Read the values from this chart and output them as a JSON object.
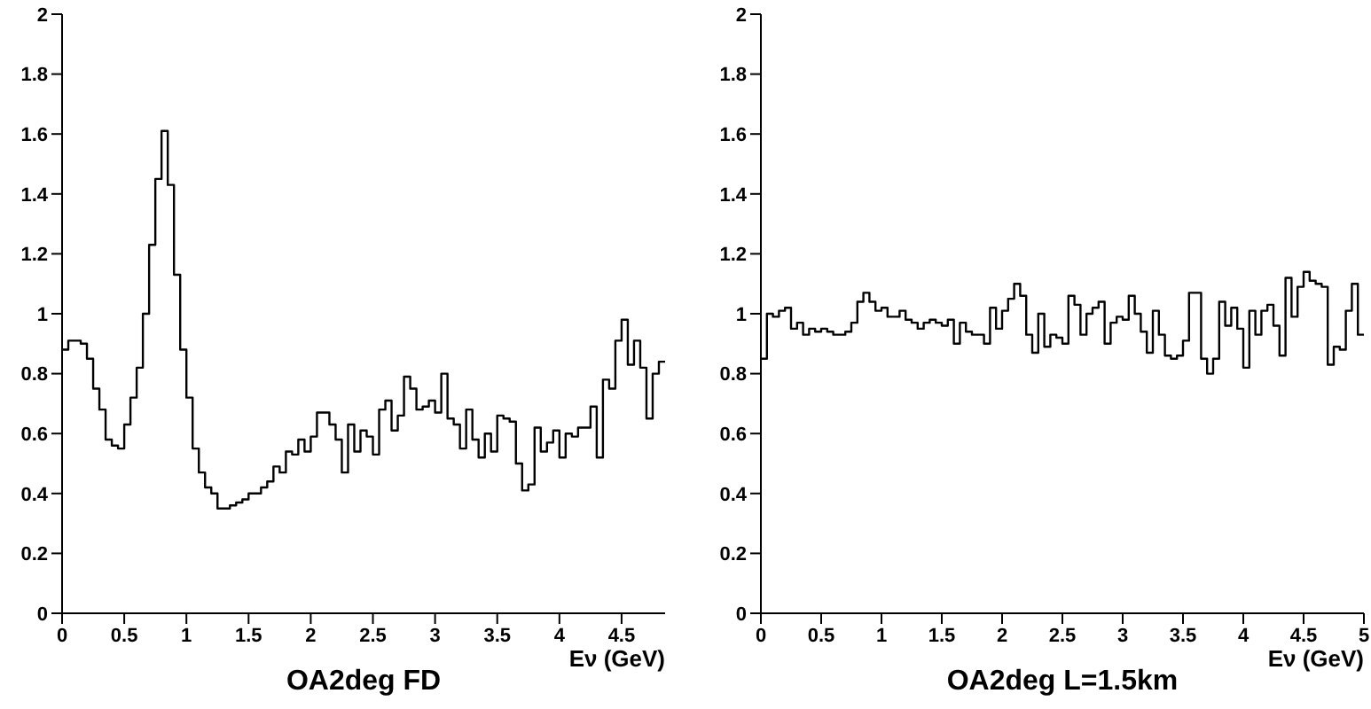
{
  "chart_data": [
    {
      "type": "histogram",
      "title": "OA2deg FD",
      "xlabel": "Eν (GeV)",
      "color": "#000000",
      "grid": false,
      "marker": "none",
      "line_style": "solid",
      "bins": [
        0,
        0.05,
        0.1,
        0.15,
        0.2,
        0.25,
        0.3,
        0.35,
        0.4,
        0.45,
        0.5,
        0.55,
        0.6,
        0.65,
        0.7,
        0.75,
        0.8,
        0.85,
        0.9,
        0.95,
        1,
        1.05,
        1.1,
        1.15,
        1.2,
        1.25,
        1.3,
        1.35,
        1.4,
        1.45,
        1.5,
        1.55,
        1.6,
        1.65,
        1.7,
        1.75,
        1.8,
        1.85,
        1.9,
        1.95,
        2,
        2.05,
        2.1,
        2.15,
        2.2,
        2.25,
        2.3,
        2.35,
        2.4,
        2.45,
        2.5,
        2.55,
        2.6,
        2.65,
        2.7,
        2.75,
        2.8,
        2.85,
        2.9,
        2.95,
        3,
        3.05,
        3.1,
        3.15,
        3.2,
        3.25,
        3.3,
        3.35,
        3.4,
        3.45,
        3.5,
        3.55,
        3.6,
        3.65,
        3.7,
        3.75,
        3.8,
        3.85,
        3.9,
        3.95,
        4,
        4.05,
        4.1,
        4.15,
        4.2,
        4.25,
        4.3,
        4.35,
        4.4,
        4.45,
        4.5,
        4.55,
        4.6,
        4.65,
        4.7,
        4.75,
        4.8,
        4.85
      ],
      "values": [
        0.88,
        0.91,
        0.91,
        0.9,
        0.85,
        0.75,
        0.68,
        0.58,
        0.56,
        0.55,
        0.63,
        0.72,
        0.82,
        1.0,
        1.23,
        1.45,
        1.61,
        1.43,
        1.13,
        0.88,
        0.72,
        0.55,
        0.47,
        0.42,
        0.4,
        0.35,
        0.35,
        0.36,
        0.37,
        0.38,
        0.4,
        0.4,
        0.42,
        0.44,
        0.49,
        0.47,
        0.54,
        0.53,
        0.58,
        0.54,
        0.59,
        0.67,
        0.67,
        0.63,
        0.58,
        0.47,
        0.63,
        0.54,
        0.61,
        0.59,
        0.53,
        0.68,
        0.71,
        0.61,
        0.66,
        0.79,
        0.75,
        0.68,
        0.69,
        0.71,
        0.67,
        0.8,
        0.65,
        0.63,
        0.55,
        0.68,
        0.58,
        0.52,
        0.6,
        0.54,
        0.66,
        0.65,
        0.64,
        0.5,
        0.41,
        0.43,
        0.62,
        0.54,
        0.57,
        0.61,
        0.52,
        0.6,
        0.59,
        0.62,
        0.62,
        0.69,
        0.52,
        0.78,
        0.75,
        0.91,
        0.98,
        0.83,
        0.91,
        0.82,
        0.65,
        0.8,
        0.84
      ],
      "xlim": [
        0,
        4.85
      ],
      "xticks": [
        0,
        0.5,
        1,
        1.5,
        2,
        2.5,
        3,
        3.5,
        4,
        4.5
      ],
      "ylim": [
        0,
        2
      ],
      "yticks": [
        0,
        0.2,
        0.4,
        0.6,
        0.8,
        1,
        1.2,
        1.4,
        1.6,
        1.8,
        2
      ]
    },
    {
      "type": "histogram",
      "title": "OA2deg L=1.5km",
      "xlabel": "Eν (GeV)",
      "color": "#000000",
      "grid": false,
      "marker": "none",
      "line_style": "solid",
      "bins": [
        0,
        0.05,
        0.1,
        0.15,
        0.2,
        0.25,
        0.3,
        0.35,
        0.4,
        0.45,
        0.5,
        0.55,
        0.6,
        0.65,
        0.7,
        0.75,
        0.8,
        0.85,
        0.9,
        0.95,
        1,
        1.05,
        1.1,
        1.15,
        1.2,
        1.25,
        1.3,
        1.35,
        1.4,
        1.45,
        1.5,
        1.55,
        1.6,
        1.65,
        1.7,
        1.75,
        1.8,
        1.85,
        1.9,
        1.95,
        2,
        2.05,
        2.1,
        2.15,
        2.2,
        2.25,
        2.3,
        2.35,
        2.4,
        2.45,
        2.5,
        2.55,
        2.6,
        2.65,
        2.7,
        2.75,
        2.8,
        2.85,
        2.9,
        2.95,
        3,
        3.05,
        3.1,
        3.15,
        3.2,
        3.25,
        3.3,
        3.35,
        3.4,
        3.45,
        3.5,
        3.55,
        3.6,
        3.65,
        3.7,
        3.75,
        3.8,
        3.85,
        3.9,
        3.95,
        4,
        4.05,
        4.1,
        4.15,
        4.2,
        4.25,
        4.3,
        4.35,
        4.4,
        4.45,
        4.5,
        4.55,
        4.6,
        4.65,
        4.7,
        4.75,
        4.8,
        4.85,
        4.9,
        4.95,
        5
      ],
      "values": [
        0.85,
        1.0,
        0.99,
        1.01,
        1.02,
        0.95,
        0.97,
        0.93,
        0.95,
        0.94,
        0.95,
        0.94,
        0.93,
        0.93,
        0.94,
        0.97,
        1.04,
        1.07,
        1.04,
        1.01,
        1.02,
        0.99,
        0.99,
        1.01,
        0.98,
        0.97,
        0.95,
        0.97,
        0.98,
        0.97,
        0.96,
        0.98,
        0.9,
        0.97,
        0.94,
        0.93,
        0.93,
        0.9,
        1.02,
        0.95,
        1.01,
        1.05,
        1.1,
        1.06,
        0.93,
        0.87,
        1.0,
        0.89,
        0.93,
        0.92,
        0.9,
        1.06,
        1.03,
        0.93,
        1.0,
        1.02,
        1.04,
        0.9,
        0.97,
        0.99,
        0.98,
        1.06,
        1.0,
        0.94,
        0.87,
        1.01,
        0.93,
        0.86,
        0.85,
        0.86,
        0.91,
        1.07,
        1.07,
        0.85,
        0.8,
        0.85,
        1.04,
        0.96,
        1.02,
        0.95,
        0.82,
        1.01,
        0.93,
        1.01,
        1.03,
        0.96,
        0.86,
        1.12,
        0.99,
        1.09,
        1.14,
        1.11,
        1.1,
        1.09,
        0.83,
        0.89,
        0.88,
        1.01,
        1.1,
        0.93
      ],
      "xlim": [
        0,
        5
      ],
      "xticks": [
        0,
        0.5,
        1,
        1.5,
        2,
        2.5,
        3,
        3.5,
        4,
        4.5,
        5
      ],
      "ylim": [
        0,
        2
      ],
      "yticks": [
        0,
        0.2,
        0.4,
        0.6,
        0.8,
        1,
        1.2,
        1.4,
        1.6,
        1.8,
        2
      ]
    }
  ]
}
